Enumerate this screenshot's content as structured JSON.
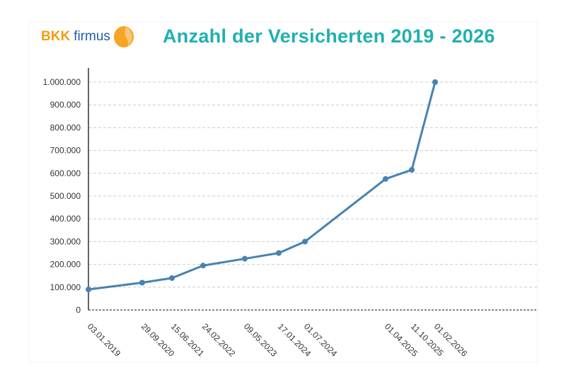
{
  "header": {
    "logo_text": "BKK firmus",
    "title": "Anzahl der Versicherten 2019 - 2026"
  },
  "colors": {
    "line": "#4682b4",
    "title": "#1fb0b0",
    "logo_orange": "#f39c12",
    "logo_blue": "#1f5fa8"
  },
  "chart_data": {
    "type": "line",
    "title": "Anzahl der Versicherten 2019 - 2026",
    "xlabel": "",
    "ylabel": "",
    "categories": [
      "03.01.2019",
      "29.09.2020",
      "15.06.2021",
      "24.02.2022",
      "09.05.2023",
      "17.01.2024",
      "01.07.2024",
      "01.04.2025",
      "11.10.2025",
      "01.02.2026"
    ],
    "values": [
      90000,
      120000,
      140000,
      195000,
      225000,
      250000,
      300000,
      575000,
      615000,
      1000000
    ],
    "ylim": [
      0,
      1000000
    ],
    "yticks": [
      0,
      100000,
      200000,
      300000,
      400000,
      500000,
      600000,
      700000,
      800000,
      900000,
      1000000
    ],
    "ytick_labels": [
      "0",
      "100.000",
      "200.000",
      "300.000",
      "400.000",
      "500.000",
      "600.000",
      "700.000",
      "800.000",
      "900.000",
      "1.000.000"
    ],
    "grid": "horizontal dashed",
    "legend": "none"
  }
}
